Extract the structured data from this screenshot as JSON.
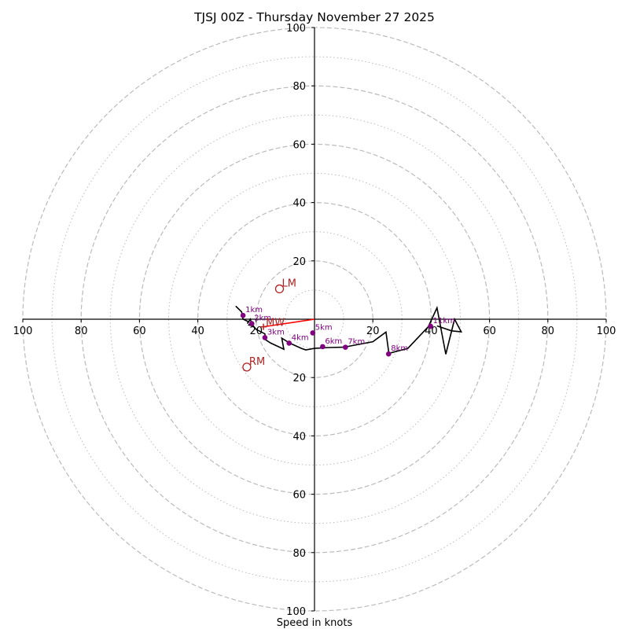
{
  "chart_data": {
    "type": "hodograph",
    "title": "TJSJ 00Z - Thursday November 27 2025",
    "xlabel": "Speed in knots",
    "units": "knots",
    "max_speed": 100,
    "major_rings": [
      20,
      40,
      60,
      80,
      100
    ],
    "minor_rings": [
      10,
      30,
      50,
      70,
      90
    ],
    "axis_tick_values": [
      20,
      40,
      60,
      80,
      100
    ],
    "axis_tick_labels": {
      "left": [
        "100",
        "80",
        "60",
        "40",
        "20"
      ],
      "right": [
        "20",
        "40",
        "60",
        "80",
        "100"
      ],
      "top": [
        "100",
        "80",
        "60",
        "40",
        "20"
      ],
      "bottom": [
        "20",
        "40",
        "60",
        "80",
        "100"
      ]
    },
    "trace": [
      [
        -27,
        4.5
      ],
      [
        -25,
        2.5
      ],
      [
        -24.5,
        0
      ],
      [
        -22.7,
        -0.8
      ],
      [
        -23,
        -1.5
      ],
      [
        -22,
        0
      ],
      [
        -21.7,
        -1
      ],
      [
        -22.5,
        -2
      ],
      [
        -21,
        -2.3
      ],
      [
        -20,
        -3.5
      ],
      [
        -19,
        -4
      ],
      [
        -18,
        -4.5
      ],
      [
        -17,
        -5
      ],
      [
        -16.8,
        -7
      ],
      [
        -15.3,
        -8
      ],
      [
        -15,
        -8.2
      ],
      [
        -11.5,
        -9.8
      ],
      [
        -10.5,
        -10.3
      ],
      [
        -11.2,
        -6.5
      ],
      [
        -8.5,
        -8.2
      ],
      [
        -4.5,
        -10
      ],
      [
        -3,
        -10.5
      ],
      [
        0,
        -10
      ],
      [
        5,
        -9.7
      ],
      [
        10,
        -9.6
      ],
      [
        20,
        -7.7
      ],
      [
        24.5,
        -4.4
      ],
      [
        25.5,
        -11.7
      ],
      [
        32,
        -10
      ],
      [
        39,
        -2.6
      ],
      [
        42,
        3.9
      ],
      [
        45,
        -12
      ],
      [
        48,
        0
      ],
      [
        50.3,
        -4.3
      ],
      [
        47,
        -4
      ],
      [
        42,
        -2.3
      ]
    ],
    "height_markers": [
      {
        "label": "1km",
        "u": -24.5,
        "v": 1.3
      },
      {
        "label": "2km",
        "u": -21.5,
        "v": -1.5
      },
      {
        "label": "3km",
        "u": -17,
        "v": -6.3
      },
      {
        "label": "4km",
        "u": -8.7,
        "v": -8.2
      },
      {
        "label": "5km",
        "u": -0.6,
        "v": -4.7
      },
      {
        "label": "6km",
        "u": 2.8,
        "v": -9.4
      },
      {
        "label": "7km",
        "u": 10.6,
        "v": -9.6
      },
      {
        "label": "8km",
        "u": 25.4,
        "v": -11.9
      },
      {
        "label": "11km",
        "u": 39.8,
        "v": -2.4
      }
    ],
    "storm_motion": [
      {
        "label": "LM",
        "u": -12,
        "v": 10.4
      },
      {
        "label": "RM",
        "u": -23.2,
        "v": -16.4
      },
      {
        "label": "MW",
        "u": -17.5,
        "v": -2.6
      }
    ],
    "shear_vector": {
      "from": [
        0,
        0
      ],
      "to": [
        -17.5,
        -2.6
      ]
    },
    "colors": {
      "trace": "#000000",
      "markers": "#800080",
      "storm_motion": "#b22222",
      "shear_vector": "#ff0000",
      "grid": "#bbbbbb"
    }
  }
}
